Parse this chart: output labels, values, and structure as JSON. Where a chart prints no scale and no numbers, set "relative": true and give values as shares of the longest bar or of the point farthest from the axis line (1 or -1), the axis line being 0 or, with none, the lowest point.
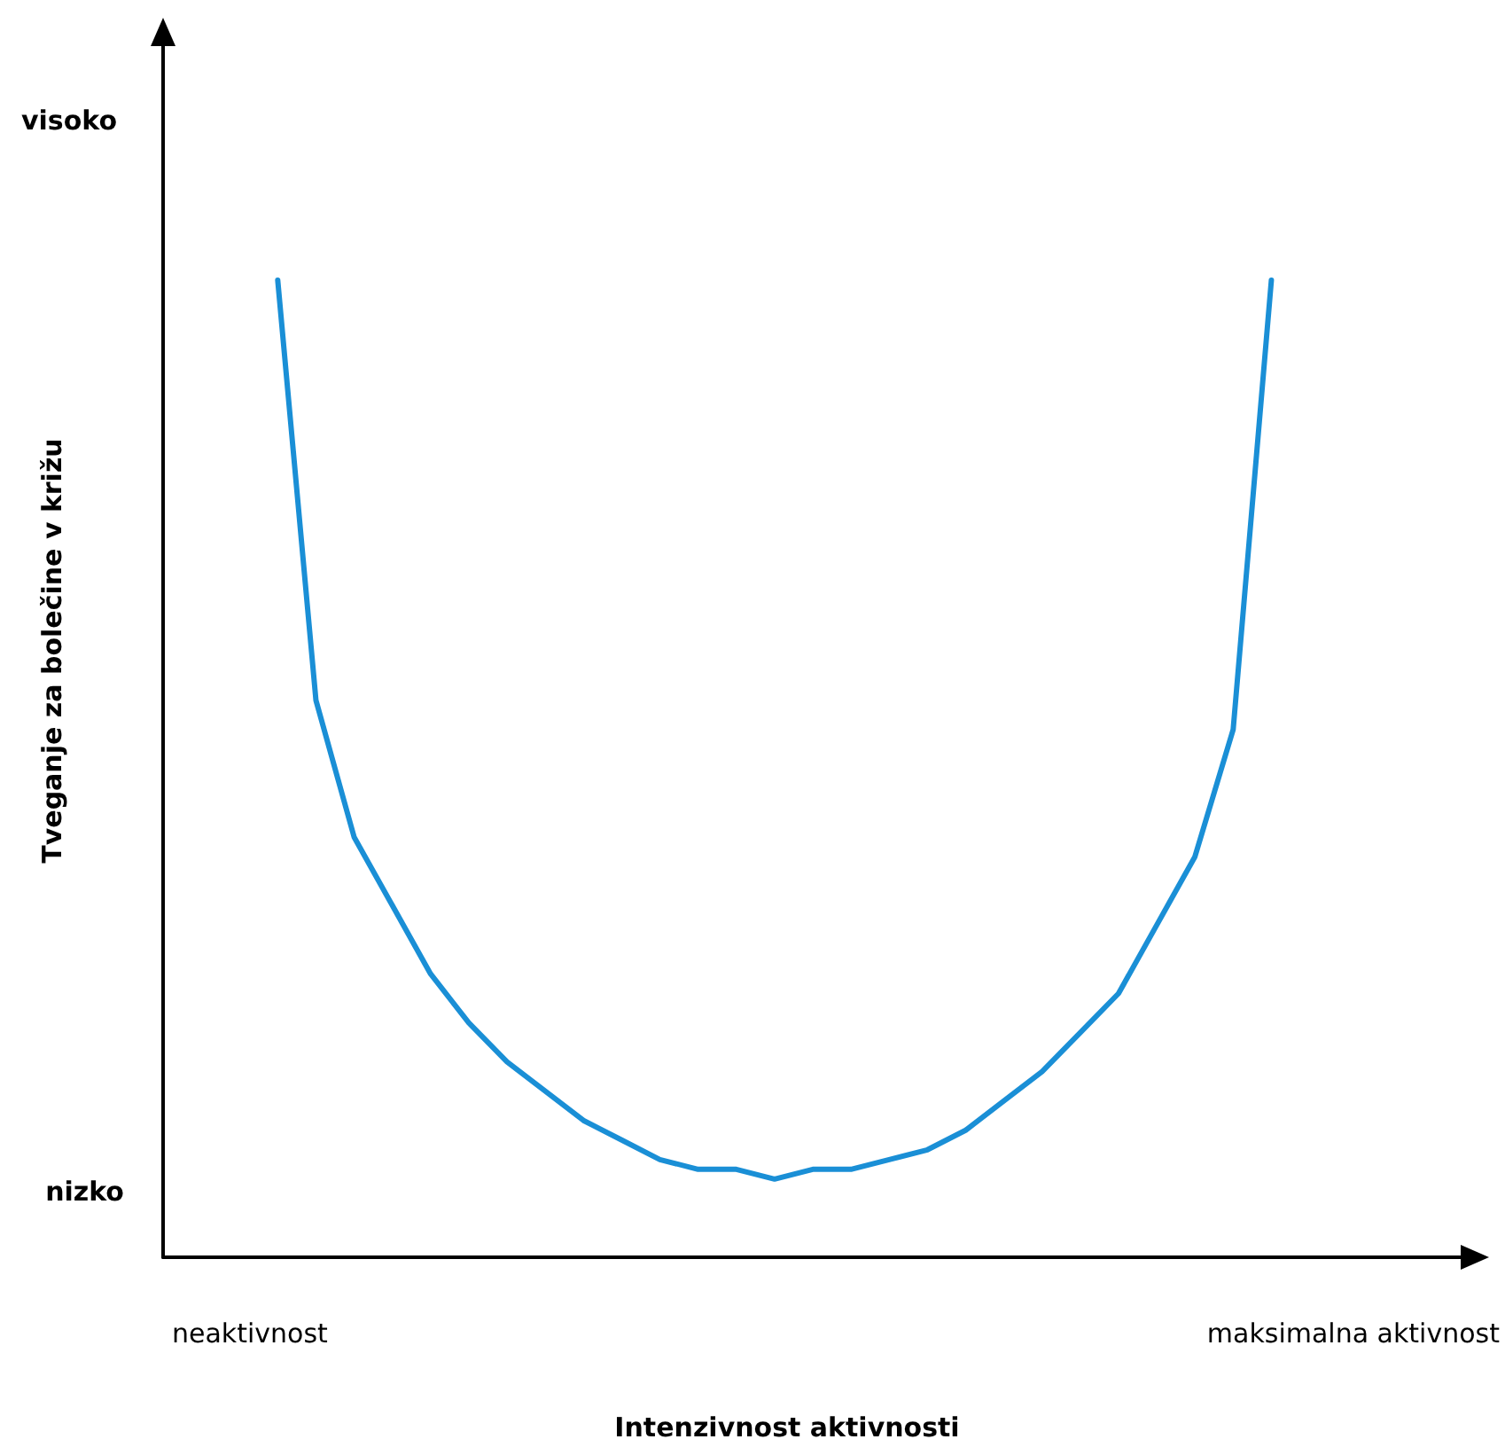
{
  "chart_data": {
    "type": "line",
    "relative": true,
    "ylabel": "Tveganje za bolečine v križu",
    "annotations": [
      "visoko",
      "nizko",
      "neaktivnost",
      "maksimalna aktivnost",
      "Intenzivnost aktivnosti"
    ],
    "categories": [
      null,
      null,
      null,
      null,
      null,
      null,
      null,
      null,
      null,
      null,
      null,
      null,
      null,
      null,
      null,
      null,
      null,
      null,
      null,
      null,
      null,
      null,
      null,
      null,
      null,
      null,
      null,
      null,
      null,
      null,
      null,
      null,
      null,
      null,
      null
    ],
    "marker": "none",
    "line_style": "solid",
    "series": [
      {
        "color": "#1a8fd6",
        "values": [
          null,
          null,
          null,
          1.0,
          0.57,
          0.43,
          0.36,
          0.29,
          0.24,
          0.2,
          0.17,
          0.14,
          0.12,
          0.1,
          0.09,
          0.09,
          0.08,
          0.09,
          0.09,
          0.1,
          0.11,
          0.13,
          0.16,
          0.19,
          0.23,
          0.27,
          0.34,
          0.41,
          0.54,
          1.0,
          null,
          null,
          null,
          null,
          null
        ]
      }
    ]
  }
}
